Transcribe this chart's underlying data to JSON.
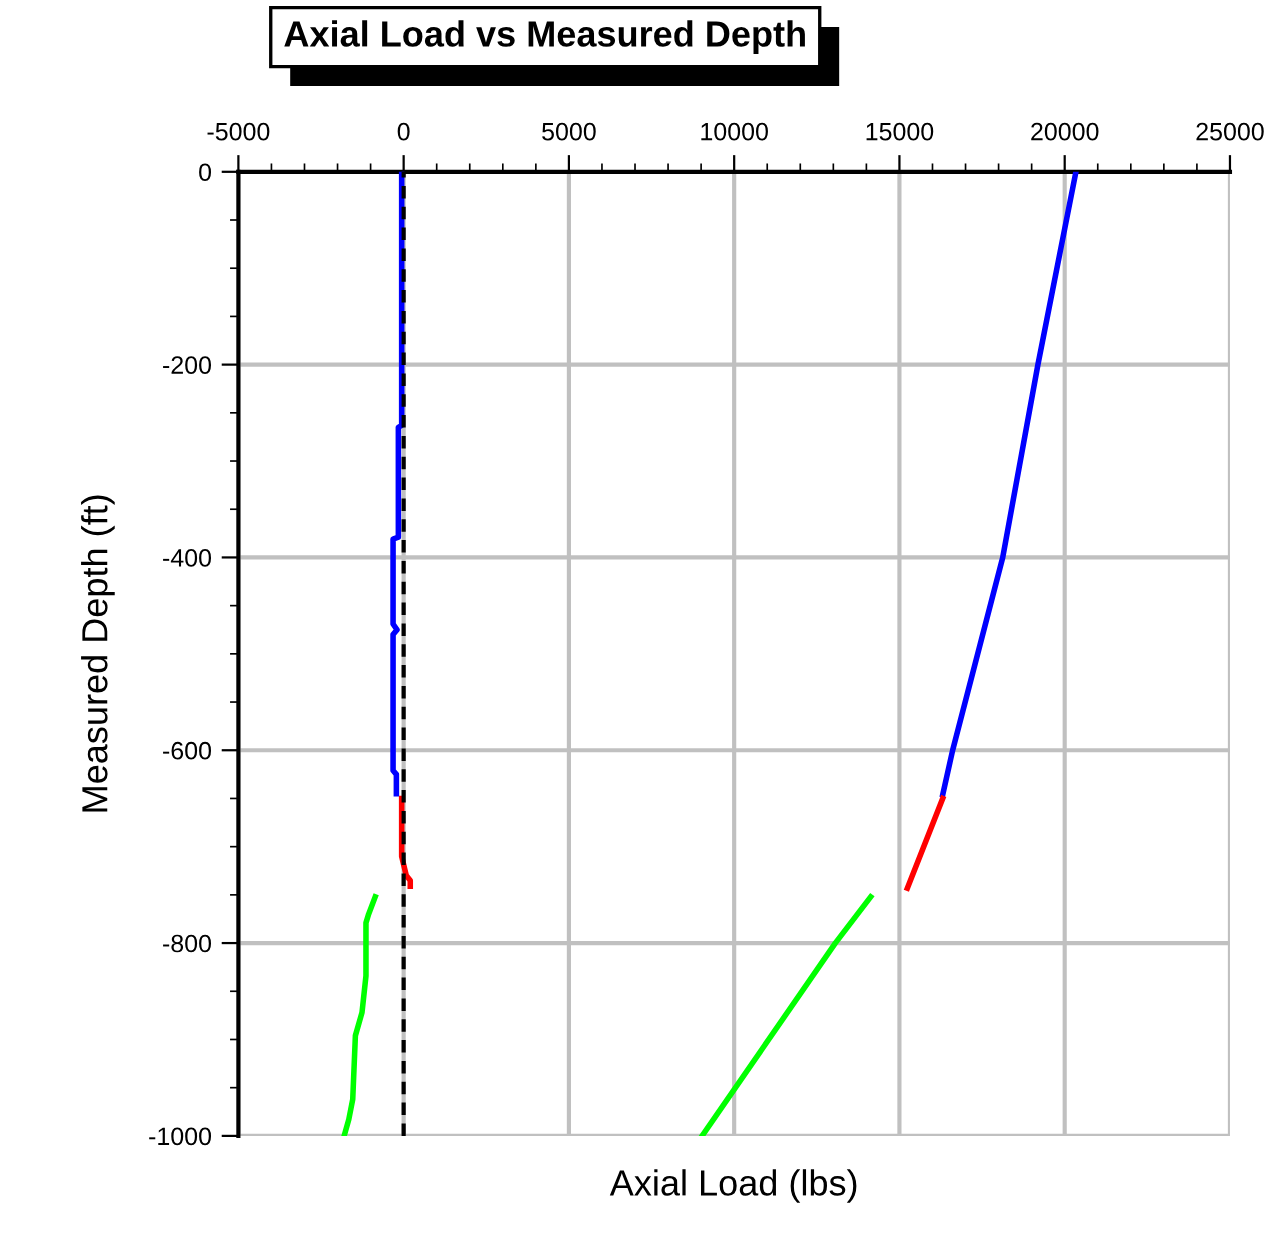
{
  "chart_data": {
    "type": "line",
    "title": "Axial Load vs Measured Depth",
    "xlabel": "Axial Load (lbs)",
    "ylabel": "Measured Depth (ft)",
    "xlim": [
      -5000,
      25000
    ],
    "xticks": [
      -5000,
      0,
      5000,
      10000,
      15000,
      20000,
      25000
    ],
    "ylim": [
      -1000,
      0
    ],
    "yticks": [
      -1000,
      -800,
      -600,
      -400,
      -200,
      0
    ],
    "grid": true,
    "legend": false,
    "marker": "none",
    "line_style": "solid",
    "ref_lines": [
      {
        "axis": "x",
        "value": 0,
        "color": "#000000",
        "line_style": "dashed"
      }
    ],
    "series": [
      {
        "color": "#0000ff",
        "x": [
          -60,
          -60,
          -160,
          -160,
          -320,
          -320,
          -200,
          -320,
          -320,
          -220,
          -220
        ],
        "values": [
          0,
          -263,
          -265,
          -379,
          -381,
          -469,
          -475,
          -480,
          -621,
          -625,
          -645
        ]
      },
      {
        "color": "#ff0000",
        "x": [
          -60,
          -60,
          80,
          200,
          200
        ],
        "values": [
          -650,
          -710,
          -730,
          -735,
          -741
        ]
      },
      {
        "color": "#00ff00",
        "x": [
          -860,
          -1060,
          -1140,
          -1140,
          -1260,
          -1460,
          -1540,
          -1660,
          -1800
        ],
        "values": [
          -752,
          -770,
          -779,
          -834,
          -872,
          -896,
          -962,
          -983,
          -1000
        ]
      },
      {
        "color": "#0000ff",
        "x": [
          20340,
          19190,
          18125,
          16610,
          16310
        ],
        "values": [
          0,
          -200,
          -400,
          -600,
          -646
        ]
      },
      {
        "color": "#ff0000",
        "x": [
          16310,
          15240
        ],
        "values": [
          -650,
          -743
        ]
      },
      {
        "color": "#00ff00",
        "x": [
          14130,
          13060,
          9030
        ],
        "values": [
          -752,
          -800,
          -1000
        ]
      }
    ]
  }
}
